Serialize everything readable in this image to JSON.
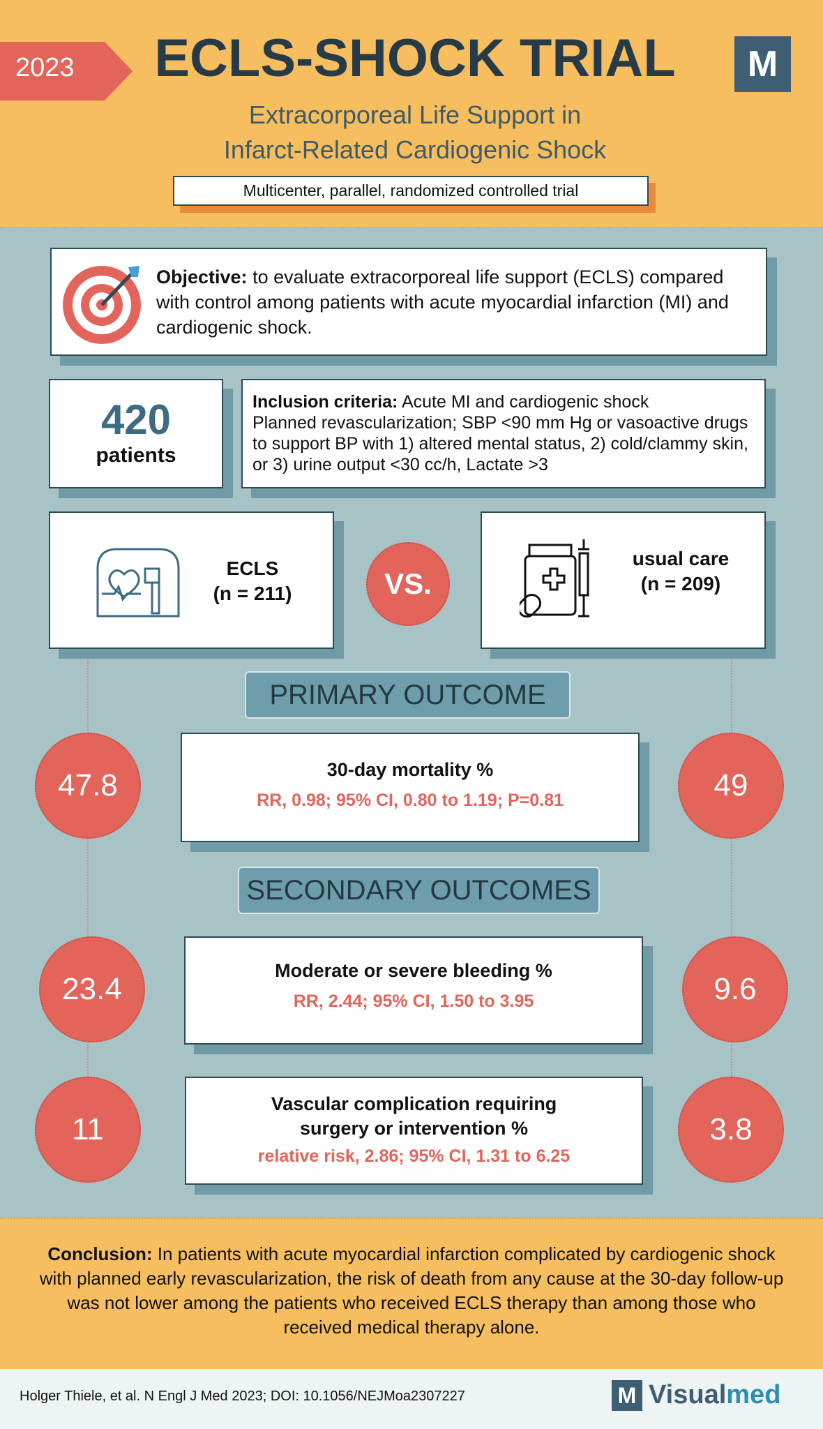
{
  "header": {
    "year": "2023",
    "title": "ECLS-SHOCK TRIAL",
    "logo": "M",
    "subtitle_lines": [
      "Extracorporeal Life Support in",
      "Infarct-Related Cardiogenic Shock"
    ],
    "design": "Multicenter, parallel, randomized controlled trial"
  },
  "objective": {
    "label": "Objective:",
    "text": "to evaluate extracorporeal life support (ECLS) compared with control among patients with acute myocardial infarction (MI) and cardiogenic shock."
  },
  "patients": {
    "count": 420,
    "label": "patients"
  },
  "inclusion": {
    "label": "Inclusion criteria:",
    "lines": [
      "Acute MI and cardiogenic shock",
      "Planned revascularization; SBP <90 mm Hg or vasoactive drugs to support BP with 1) altered mental status, 2) cold/clammy skin, or 3) urine output <30 cc/h, Lactate >3"
    ]
  },
  "arms": [
    {
      "name": "ECLS",
      "n": "(n = 211)"
    },
    {
      "name": "usual care",
      "n": "(n = 209)"
    }
  ],
  "vs": "VS.",
  "primary": {
    "heading": "PRIMARY OUTCOME",
    "outcomes": [
      {
        "name": "30-day mortality  %",
        "stat": "RR, 0.98; 95% CI, 0.80 to 1.19; P=0.81",
        "ecls": 47.8,
        "control": 49
      }
    ]
  },
  "secondary": {
    "heading": "SECONDARY OUTCOMES",
    "outcomes": [
      {
        "name": "Moderate or severe bleeding %",
        "stat": "RR, 2.44; 95% CI, 1.50 to 3.95",
        "ecls": 23.4,
        "control": 9.6
      },
      {
        "name": "Vascular complication requiring surgery or intervention %",
        "stat": "relative risk, 2.86; 95% CI, 1.31 to 6.25",
        "ecls": 11,
        "control": 3.8
      }
    ]
  },
  "conclusion": {
    "label": "Conclusion:",
    "text": "In patients with acute myocardial infarction complicated by cardiogenic shock with planned early revascularization, the risk of death from any cause at the 30-day follow-up was not lower among the patients who received ECLS therapy than among those who received medical therapy alone."
  },
  "footer": {
    "citation": "Holger Thiele,  et al.  N Engl J Med 2023; DOI: 10.1056/NEJMoa2307227",
    "brand_logo": "M",
    "brand_a": "Visual",
    "brand_b": "med"
  }
}
